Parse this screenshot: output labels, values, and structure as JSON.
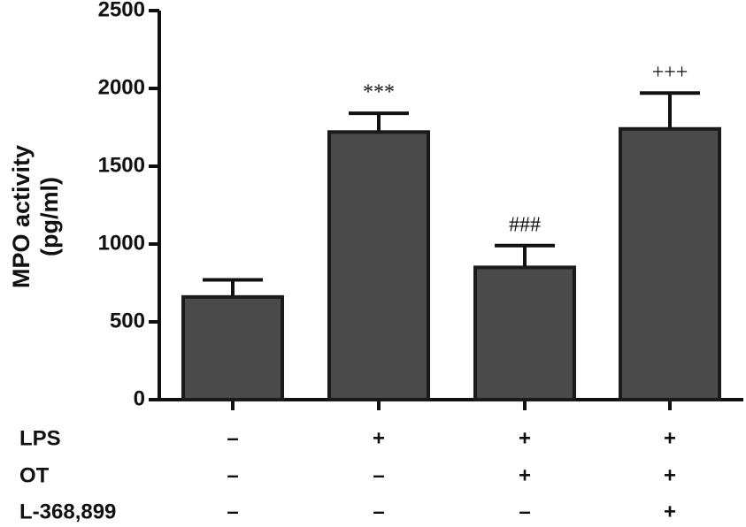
{
  "chart_data": {
    "type": "bar",
    "y_label": [
      "MPO activity",
      "(pg/ml)"
    ],
    "categories": [
      null,
      null,
      null,
      null
    ],
    "values": [
      660,
      1720,
      850,
      1740
    ],
    "errors": [
      110,
      120,
      140,
      230
    ],
    "annotations": [
      null,
      "***",
      "###",
      "+++"
    ],
    "color": "#4a4a4a",
    "ylim": [
      0,
      2500
    ],
    "yticks": [
      0,
      500,
      1000,
      1500,
      2000,
      2500
    ],
    "treatments": [
      {
        "name": "LPS",
        "values": [
          "–",
          "+",
          "+",
          "+"
        ]
      },
      {
        "name": "OT",
        "values": [
          "–",
          "–",
          "+",
          "+"
        ]
      },
      {
        "name": "L-368,899",
        "values": [
          "–",
          "–",
          "–",
          "+"
        ]
      }
    ]
  }
}
